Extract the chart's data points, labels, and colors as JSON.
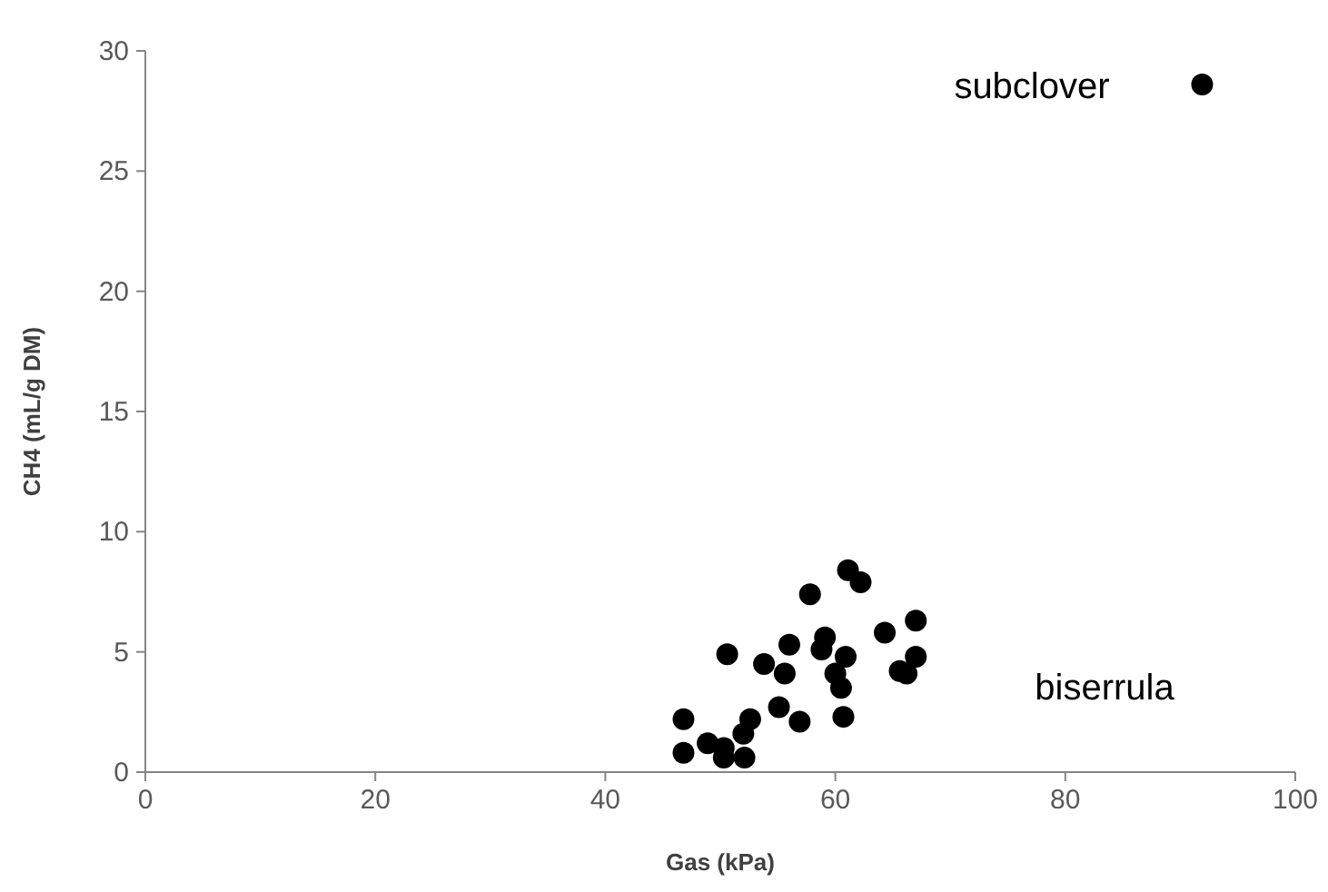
{
  "chart_data": {
    "type": "scatter",
    "xlabel": "Gas (kPa)",
    "ylabel": "CH4 (mL/g DM)",
    "xlim": [
      0,
      100
    ],
    "xticks": [
      0,
      20,
      40,
      60,
      80,
      100
    ],
    "ylim": [
      0,
      30
    ],
    "yticks": [
      0,
      5,
      10,
      15,
      20,
      25,
      30
    ],
    "grid": false,
    "marker": "circle",
    "series": [
      {
        "color": "#000000",
        "x": [
          46.8,
          46.8,
          48.9,
          50.3,
          50.3,
          52.1,
          52.0,
          52.6,
          50.6,
          53.8,
          55.6,
          56.0,
          55.1,
          56.9,
          57.8,
          59.1,
          58.8,
          60.9,
          60.0,
          60.5,
          60.7,
          61.1,
          62.2,
          64.3,
          67.0,
          67.0,
          65.6,
          66.2,
          91.9
        ],
        "values": [
          2.2,
          0.8,
          1.2,
          1.0,
          0.6,
          0.6,
          1.6,
          2.2,
          4.9,
          4.5,
          4.1,
          5.3,
          2.7,
          2.1,
          7.4,
          5.6,
          5.1,
          4.8,
          4.1,
          3.5,
          2.3,
          8.4,
          7.9,
          5.8,
          6.3,
          4.8,
          4.2,
          4.1,
          28.6
        ]
      }
    ],
    "annotations": [
      "subclover",
      "biserrula"
    ]
  }
}
